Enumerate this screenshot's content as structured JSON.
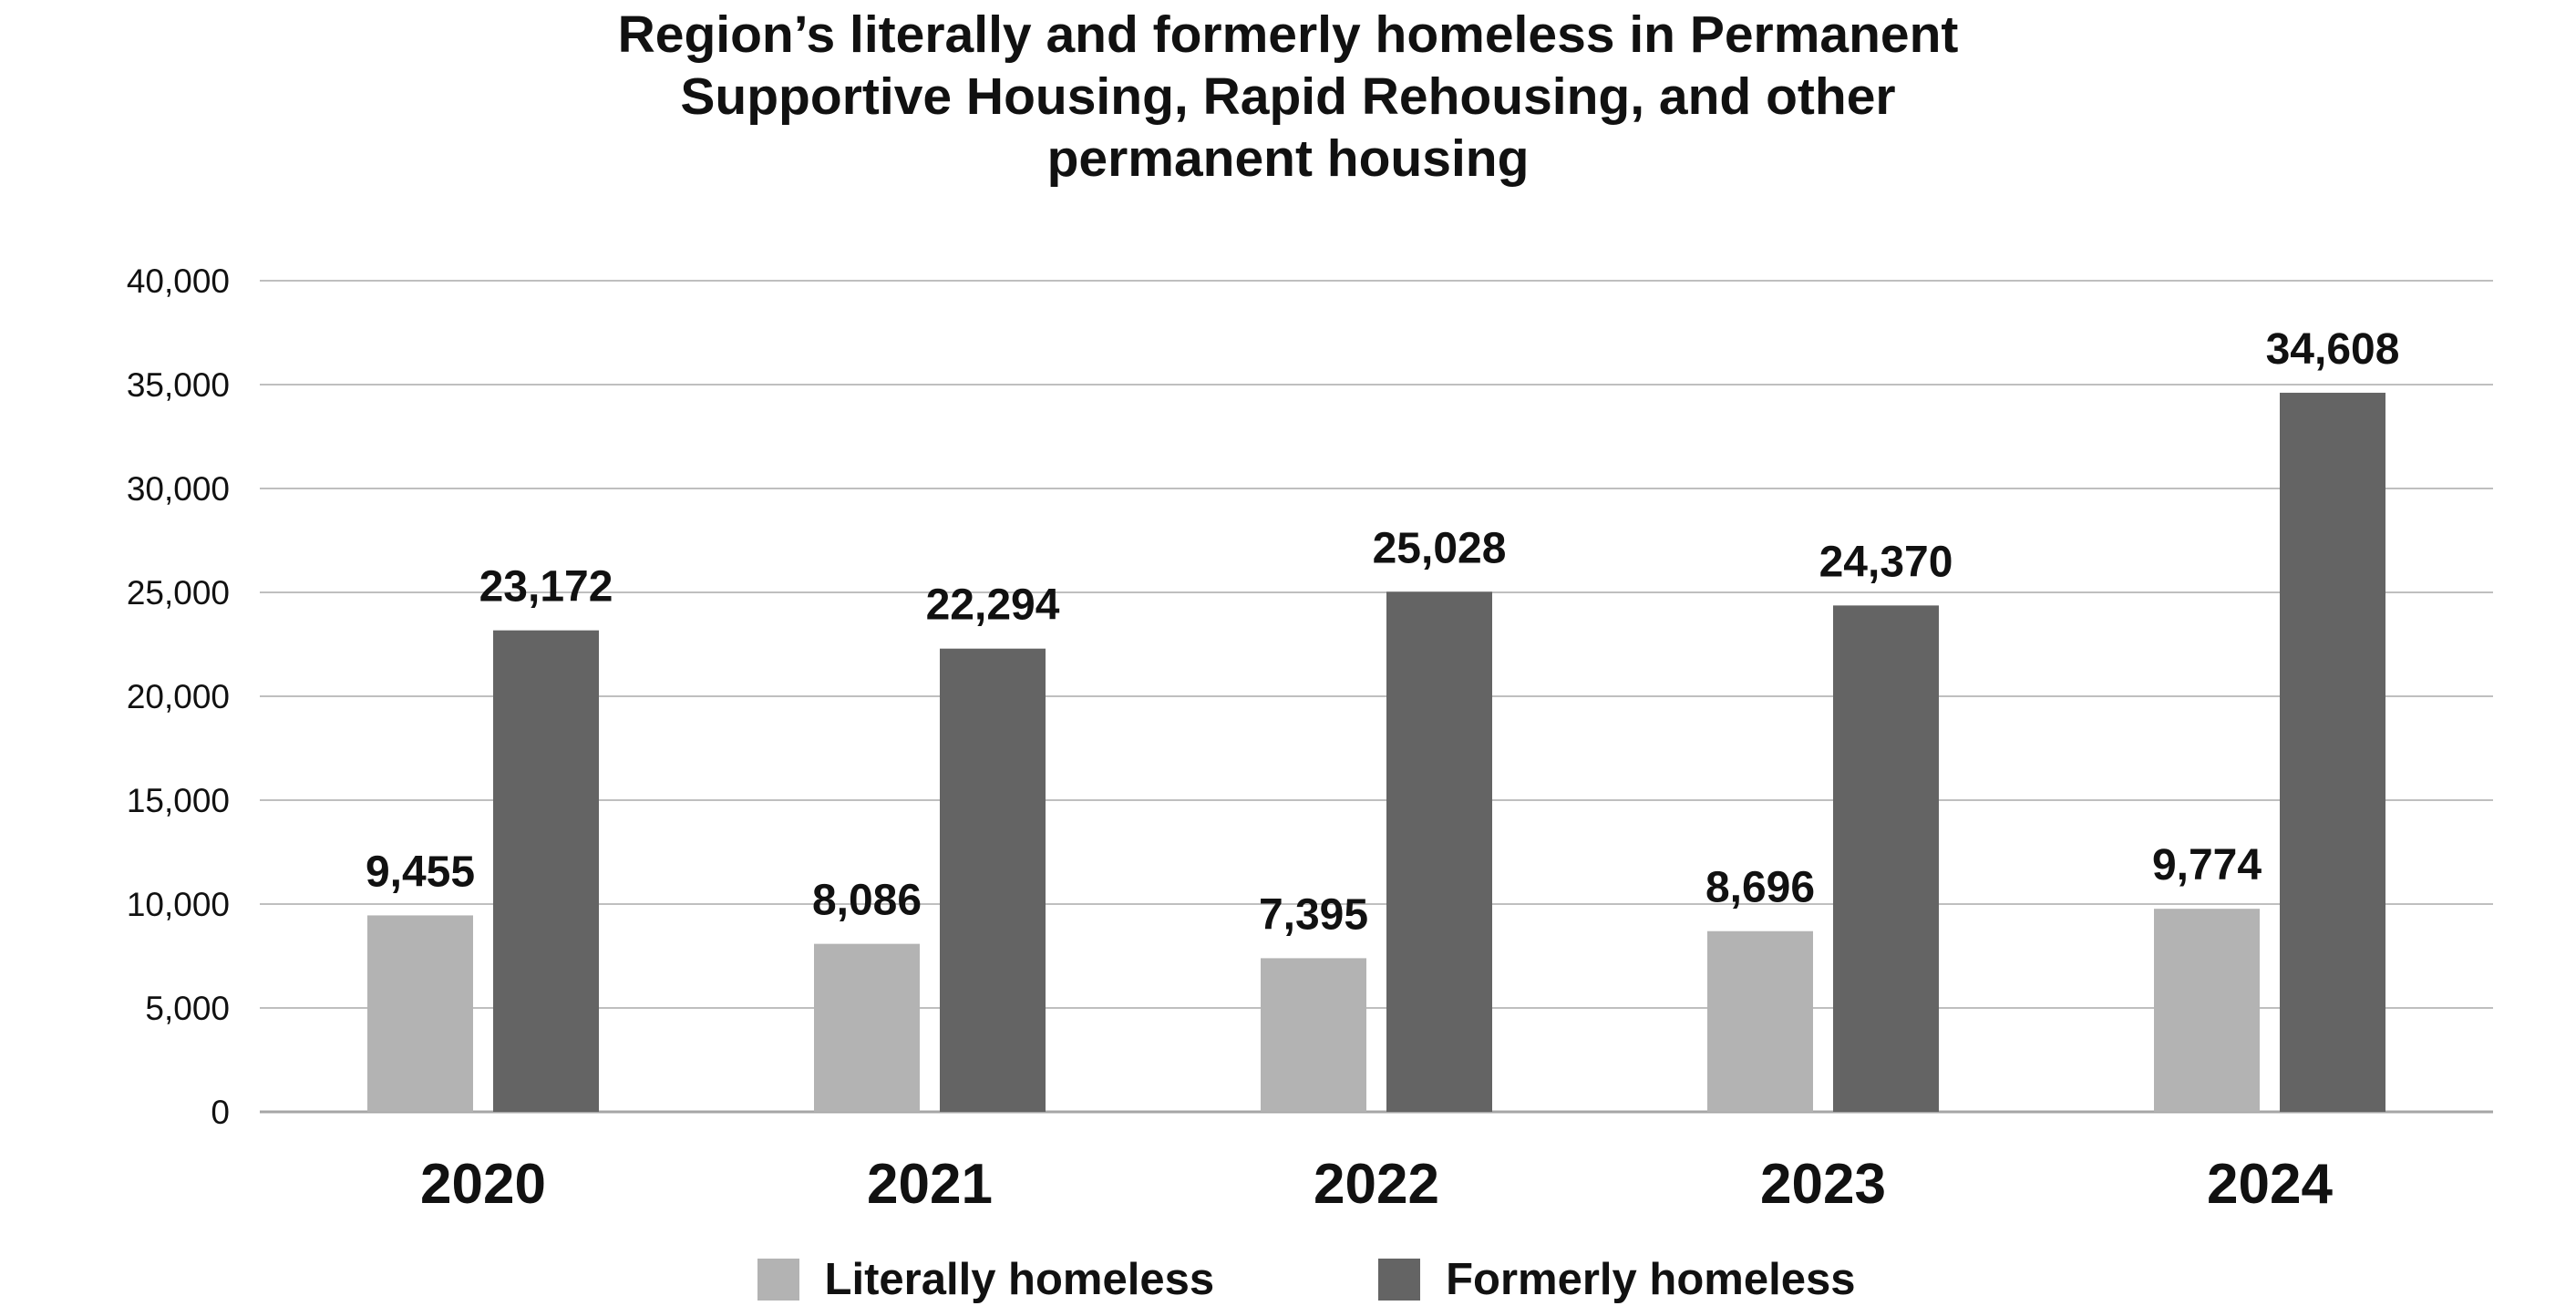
{
  "chart_data": {
    "type": "bar",
    "title_lines": [
      "Region’s literally and formerly homeless in Permanent",
      "Supportive Housing, Rapid Rehousing, and other",
      "permanent housing"
    ],
    "categories": [
      "2020",
      "2021",
      "2022",
      "2023",
      "2024"
    ],
    "series": [
      {
        "name": "Literally homeless",
        "color": "#b3b3b3",
        "values": [
          9455,
          8086,
          7395,
          8696,
          9774
        ],
        "labels": [
          "9,455",
          "8,086",
          "7,395",
          "8,696",
          "9,774"
        ]
      },
      {
        "name": "Formerly homeless",
        "color": "#646464",
        "values": [
          23172,
          22294,
          25028,
          24370,
          34608
        ],
        "labels": [
          "23,172",
          "22,294",
          "25,028",
          "24,370",
          "34,608"
        ]
      }
    ],
    "ylim": [
      0,
      40000
    ],
    "yticks": [
      0,
      5000,
      10000,
      15000,
      20000,
      25000,
      30000,
      35000,
      40000
    ],
    "ytick_labels": [
      "0",
      "5,000",
      "10,000",
      "15,000",
      "20,000",
      "25,000",
      "30,000",
      "35,000",
      "40,000"
    ],
    "grid": true,
    "legend_position": "bottom",
    "xlabel": "",
    "ylabel": ""
  }
}
